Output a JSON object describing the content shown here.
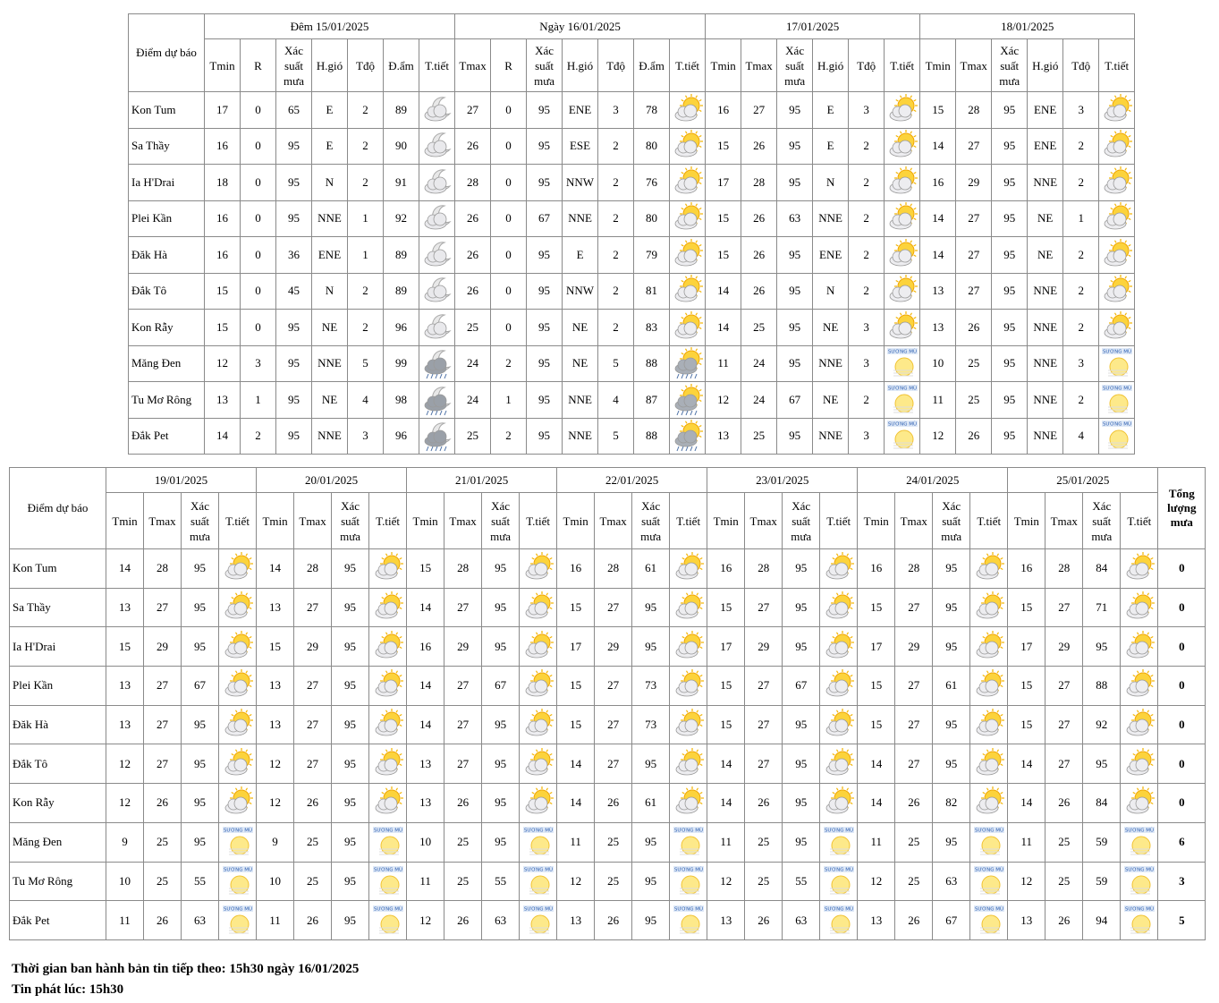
{
  "table1": {
    "corner": "Điểm dự báo",
    "groups": [
      {
        "title": "Đêm 15/01/2025",
        "columns": [
          "Tmin",
          "R",
          "Xác suất mưa",
          "H.gió",
          "Tđộ",
          "Đ.ẩm",
          "T.tiết"
        ]
      },
      {
        "title": "Ngày 16/01/2025",
        "columns": [
          "Tmax",
          "R",
          "Xác suất mưa",
          "H.gió",
          "Tđộ",
          "Đ.ẩm",
          "T.tiết"
        ]
      },
      {
        "title": "17/01/2025",
        "columns": [
          "Tmin",
          "Tmax",
          "Xác suất mưa",
          "H.gió",
          "Tđộ",
          "T.tiết"
        ]
      },
      {
        "title": "18/01/2025",
        "columns": [
          "Tmin",
          "Tmax",
          "Xác suất mưa",
          "H.gió",
          "Tđộ",
          "T.tiết"
        ]
      }
    ],
    "rows": [
      {
        "name": "Kon Tum",
        "cells": [
          17,
          0,
          65,
          "E",
          2,
          89,
          null,
          27,
          0,
          95,
          "ENE",
          3,
          78,
          null,
          16,
          27,
          95,
          "E",
          3,
          null,
          15,
          28,
          95,
          "ENE",
          3,
          null
        ]
      },
      {
        "name": "Sa Thầy",
        "cells": [
          16,
          0,
          95,
          "E",
          2,
          90,
          null,
          26,
          0,
          95,
          "ESE",
          2,
          80,
          null,
          15,
          26,
          95,
          "E",
          2,
          null,
          14,
          27,
          95,
          "ENE",
          2,
          null
        ]
      },
      {
        "name": "Ia H'Drai",
        "cells": [
          18,
          0,
          95,
          "N",
          2,
          91,
          null,
          28,
          0,
          95,
          "NNW",
          2,
          76,
          null,
          17,
          28,
          95,
          "N",
          2,
          null,
          16,
          29,
          95,
          "NNE",
          2,
          null
        ]
      },
      {
        "name": "Plei Kần",
        "cells": [
          16,
          0,
          95,
          "NNE",
          1,
          92,
          null,
          26,
          0,
          67,
          "NNE",
          2,
          80,
          null,
          15,
          26,
          63,
          "NNE",
          2,
          null,
          14,
          27,
          95,
          "NE",
          1,
          null
        ]
      },
      {
        "name": "Đăk Hà",
        "cells": [
          16,
          0,
          36,
          "ENE",
          1,
          89,
          null,
          26,
          0,
          95,
          "E",
          2,
          79,
          null,
          15,
          26,
          95,
          "ENE",
          2,
          null,
          14,
          27,
          95,
          "NE",
          2,
          null
        ]
      },
      {
        "name": "Đắk Tô",
        "cells": [
          15,
          0,
          45,
          "N",
          2,
          89,
          null,
          26,
          0,
          95,
          "NNW",
          2,
          81,
          null,
          14,
          26,
          95,
          "N",
          2,
          null,
          13,
          27,
          95,
          "NNE",
          2,
          null
        ]
      },
      {
        "name": "Kon Rẫy",
        "cells": [
          15,
          0,
          95,
          "NE",
          2,
          96,
          null,
          25,
          0,
          95,
          "NE",
          2,
          83,
          null,
          14,
          25,
          95,
          "NE",
          3,
          null,
          13,
          26,
          95,
          "NNE",
          2,
          null
        ]
      },
      {
        "name": "Măng Đen",
        "cells": [
          12,
          3,
          95,
          "NNE",
          5,
          99,
          null,
          24,
          2,
          95,
          "NE",
          5,
          88,
          null,
          11,
          24,
          95,
          "NNE",
          3,
          "SƯƠNG MÙ",
          10,
          25,
          95,
          "NNE",
          3,
          "SƯƠNG MÙ"
        ]
      },
      {
        "name": "Tu Mơ Rông",
        "cells": [
          13,
          1,
          95,
          "NE",
          4,
          98,
          null,
          24,
          1,
          95,
          "NNE",
          4,
          87,
          null,
          12,
          24,
          67,
          "NE",
          2,
          "SƯƠNG MÙ",
          11,
          25,
          95,
          "NNE",
          2,
          "SƯƠNG MÙ"
        ]
      },
      {
        "name": "Đắk Pet",
        "cells": [
          14,
          2,
          95,
          "NNE",
          3,
          96,
          null,
          25,
          2,
          95,
          "NNE",
          5,
          88,
          null,
          13,
          25,
          95,
          "NNE",
          3,
          "SƯƠNG MÙ",
          12,
          26,
          95,
          "NNE",
          4,
          "SƯƠNG MÙ"
        ]
      }
    ]
  },
  "table2": {
    "corner": "Điểm dự báo",
    "total_header": "Tổng lượng mưa",
    "groups": [
      {
        "title": "19/01/2025",
        "columns": [
          "Tmin",
          "Tmax",
          "Xác suất mưa",
          "T.tiết"
        ]
      },
      {
        "title": "20/01/2025",
        "columns": [
          "Tmin",
          "Tmax",
          "Xác suất mưa",
          "T.tiết"
        ]
      },
      {
        "title": "21/01/2025",
        "columns": [
          "Tmin",
          "Tmax",
          "Xác suất mưa",
          "T.tiết"
        ]
      },
      {
        "title": "22/01/2025",
        "columns": [
          "Tmin",
          "Tmax",
          "Xác suất mưa",
          "T.tiết"
        ]
      },
      {
        "title": "23/01/2025",
        "columns": [
          "Tmin",
          "Tmax",
          "Xác suất mưa",
          "T.tiết"
        ]
      },
      {
        "title": "24/01/2025",
        "columns": [
          "Tmin",
          "Tmax",
          "Xác suất mưa",
          "T.tiết"
        ]
      },
      {
        "title": "25/01/2025",
        "columns": [
          "Tmin",
          "Tmax",
          "Xác suất mưa",
          "T.tiết"
        ]
      }
    ],
    "rows": [
      {
        "name": "Kon Tum",
        "cells": [
          14,
          28,
          95,
          null,
          14,
          28,
          95,
          null,
          15,
          28,
          95,
          null,
          16,
          28,
          61,
          null,
          16,
          28,
          95,
          null,
          16,
          28,
          95,
          null,
          16,
          28,
          84,
          null
        ],
        "total": 0
      },
      {
        "name": "Sa Thầy",
        "cells": [
          13,
          27,
          95,
          null,
          13,
          27,
          95,
          null,
          14,
          27,
          95,
          null,
          15,
          27,
          95,
          null,
          15,
          27,
          95,
          null,
          15,
          27,
          95,
          null,
          15,
          27,
          71,
          null
        ],
        "total": 0
      },
      {
        "name": "Ia H'Drai",
        "cells": [
          15,
          29,
          95,
          null,
          15,
          29,
          95,
          null,
          16,
          29,
          95,
          null,
          17,
          29,
          95,
          null,
          17,
          29,
          95,
          null,
          17,
          29,
          95,
          null,
          17,
          29,
          95,
          null
        ],
        "total": 0
      },
      {
        "name": "Plei Kần",
        "cells": [
          13,
          27,
          67,
          null,
          13,
          27,
          95,
          null,
          14,
          27,
          67,
          null,
          15,
          27,
          73,
          null,
          15,
          27,
          67,
          null,
          15,
          27,
          61,
          null,
          15,
          27,
          88,
          null
        ],
        "total": 0
      },
      {
        "name": "Đăk Hà",
        "cells": [
          13,
          27,
          95,
          null,
          13,
          27,
          95,
          null,
          14,
          27,
          95,
          null,
          15,
          27,
          73,
          null,
          15,
          27,
          95,
          null,
          15,
          27,
          95,
          null,
          15,
          27,
          92,
          null
        ],
        "total": 0
      },
      {
        "name": "Đắk Tô",
        "cells": [
          12,
          27,
          95,
          null,
          12,
          27,
          95,
          null,
          13,
          27,
          95,
          null,
          14,
          27,
          95,
          null,
          14,
          27,
          95,
          null,
          14,
          27,
          95,
          null,
          14,
          27,
          95,
          null
        ],
        "total": 0
      },
      {
        "name": "Kon Rẫy",
        "cells": [
          12,
          26,
          95,
          null,
          12,
          26,
          95,
          null,
          13,
          26,
          95,
          null,
          14,
          26,
          61,
          null,
          14,
          26,
          95,
          null,
          14,
          26,
          82,
          null,
          14,
          26,
          84,
          null
        ],
        "total": 0
      },
      {
        "name": "Măng Đen",
        "cells": [
          9,
          25,
          95,
          "SƯƠNG MÙ",
          9,
          25,
          95,
          "SƯƠNG MÙ",
          10,
          25,
          95,
          "SƯƠNG MÙ",
          11,
          25,
          95,
          "SƯƠNG MÙ",
          11,
          25,
          95,
          "SƯƠNG MÙ",
          11,
          25,
          95,
          "SƯƠNG MÙ",
          11,
          25,
          59,
          "SƯƠNG MÙ"
        ],
        "total": 6
      },
      {
        "name": "Tu Mơ Rông",
        "cells": [
          10,
          25,
          55,
          "SƯƠNG MÙ",
          10,
          25,
          95,
          "SƯƠNG MÙ",
          11,
          25,
          55,
          "SƯƠNG MÙ",
          12,
          25,
          95,
          "SƯƠNG MÙ",
          12,
          25,
          55,
          "SƯƠNG MÙ",
          12,
          25,
          63,
          "SƯƠNG MÙ",
          12,
          25,
          59,
          "SƯƠNG MÙ"
        ],
        "total": 3
      },
      {
        "name": "Đắk Pet",
        "cells": [
          11,
          26,
          63,
          "SƯƠNG MÙ",
          11,
          26,
          95,
          "SƯƠNG MÙ",
          12,
          26,
          63,
          "SƯƠNG MÙ",
          13,
          26,
          95,
          "SƯƠNG MÙ",
          13,
          26,
          63,
          "SƯƠNG MÙ",
          13,
          26,
          67,
          "SƯƠNG MÙ",
          13,
          26,
          94,
          "SƯƠNG MÙ"
        ],
        "total": 5
      }
    ]
  },
  "footer": {
    "next_issue": "Thời gian ban hành bản tin tiếp theo: 15h30 ngày 16/01/2025",
    "issued": "Tin phát lúc: 15h30"
  }
}
